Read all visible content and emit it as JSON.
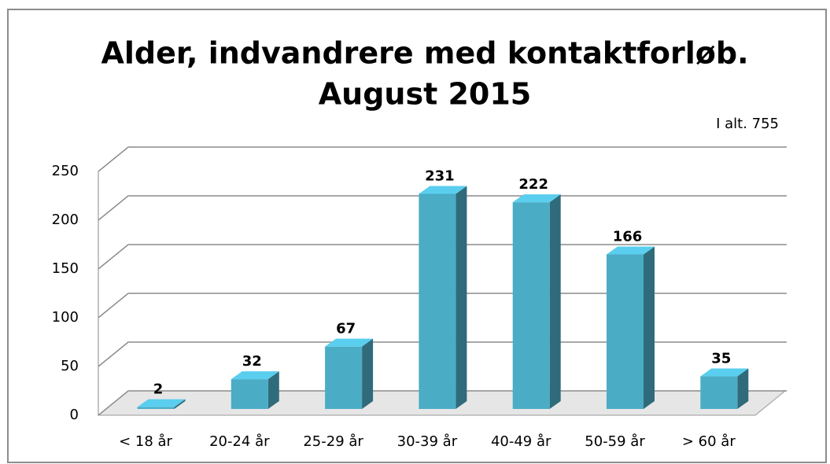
{
  "chart_data": {
    "type": "bar3d",
    "title": [
      "Alder, indvandrere med kontaktforløb.",
      "August 2015"
    ],
    "annotation": "I alt. 755",
    "categories": [
      "< 18 år",
      "20-24 år",
      "25-29 år",
      "30-39 år",
      "40-49 år",
      "50-59 år",
      "> 60 år"
    ],
    "values": [
      2,
      32,
      67,
      231,
      222,
      166,
      35
    ],
    "color": "#4bacc6",
    "ylim": [
      0,
      250
    ],
    "yticks": [
      0,
      50,
      100,
      150,
      200,
      250
    ],
    "grid": true
  }
}
